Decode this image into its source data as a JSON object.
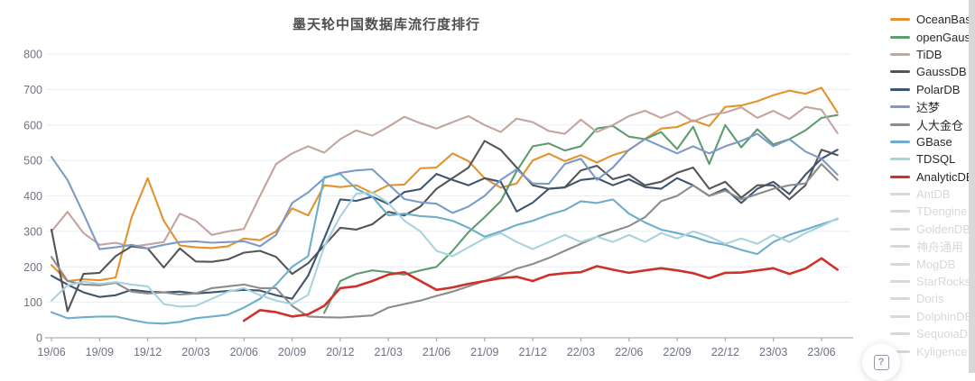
{
  "chart_data": {
    "type": "line",
    "title": "墨天轮中国数据库流行度排行",
    "grid": "horizontal",
    "legend_position": "right",
    "ylim": [
      0,
      800
    ],
    "y_ticks": [
      0,
      100,
      200,
      300,
      400,
      500,
      600,
      700,
      800
    ],
    "x_tick_labels": [
      "19/06",
      "19/09",
      "19/12",
      "20/03",
      "20/06",
      "20/09",
      "20/12",
      "21/03",
      "21/06",
      "21/09",
      "21/12",
      "22/03",
      "22/06",
      "22/09",
      "22/12",
      "23/03",
      "23/06"
    ],
    "x": [
      "19/06",
      "19/07",
      "19/08",
      "19/09",
      "19/10",
      "19/11",
      "19/12",
      "20/01",
      "20/02",
      "20/03",
      "20/04",
      "20/05",
      "20/06",
      "20/07",
      "20/08",
      "20/09",
      "20/10",
      "20/11",
      "20/12",
      "21/01",
      "21/02",
      "21/03",
      "21/04",
      "21/05",
      "21/06",
      "21/07",
      "21/08",
      "21/09",
      "21/10",
      "21/11",
      "21/12",
      "22/01",
      "22/02",
      "22/03",
      "22/04",
      "22/05",
      "22/06",
      "22/07",
      "22/08",
      "22/09",
      "22/10",
      "22/11",
      "22/12",
      "23/01",
      "23/02",
      "23/03",
      "23/04",
      "23/05",
      "23/06",
      "23/07"
    ],
    "series": [
      {
        "name": "OceanBase",
        "slug": "oceanbase",
        "color": "#E2932E",
        "values": [
          205,
          160,
          165,
          162,
          170,
          340,
          450,
          330,
          260,
          255,
          253,
          258,
          280,
          275,
          300,
          365,
          345,
          430,
          425,
          430,
          408,
          430,
          432,
          478,
          480,
          520,
          498,
          450,
          423,
          435,
          500,
          519,
          498,
          515,
          494,
          515,
          529,
          561,
          590,
          594,
          613,
          597,
          651,
          655,
          667,
          684,
          697,
          688,
          705,
          635
        ]
      },
      {
        "name": "openGauss",
        "slug": "opengauss",
        "color": "#5F9B71",
        "values": [
          null,
          null,
          null,
          null,
          null,
          null,
          null,
          null,
          null,
          null,
          null,
          null,
          null,
          null,
          null,
          null,
          null,
          70,
          160,
          180,
          190,
          185,
          178,
          190,
          200,
          245,
          298,
          340,
          385,
          470,
          540,
          548,
          528,
          540,
          590,
          597,
          567,
          560,
          580,
          532,
          595,
          490,
          600,
          537,
          588,
          545,
          560,
          585,
          620,
          628
        ]
      },
      {
        "name": "TiDB",
        "slug": "tidb",
        "color": "#C4A49D",
        "values": [
          300,
          355,
          295,
          262,
          268,
          257,
          263,
          270,
          350,
          330,
          290,
          300,
          307,
          400,
          490,
          520,
          540,
          522,
          560,
          585,
          570,
          595,
          623,
          605,
          590,
          608,
          625,
          600,
          580,
          618,
          608,
          583,
          575,
          615,
          580,
          600,
          625,
          640,
          620,
          638,
          610,
          628,
          635,
          650,
          620,
          640,
          617,
          651,
          643,
          577
        ]
      },
      {
        "name": "GaussDB",
        "slug": "gaussdb",
        "color": "#555555",
        "values": [
          305,
          75,
          180,
          183,
          230,
          258,
          252,
          198,
          252,
          215,
          214,
          221,
          240,
          245,
          228,
          180,
          210,
          260,
          310,
          305,
          320,
          355,
          345,
          370,
          420,
          450,
          480,
          555,
          530,
          480,
          430,
          420,
          424,
          472,
          485,
          447,
          460,
          430,
          440,
          465,
          480,
          420,
          440,
          395,
          430,
          430,
          390,
          430,
          530,
          515
        ]
      },
      {
        "name": "PolarDB",
        "slug": "polardb",
        "color": "#3D5570",
        "values": [
          175,
          150,
          128,
          115,
          120,
          135,
          130,
          128,
          130,
          125,
          128,
          132,
          135,
          133,
          120,
          110,
          175,
          280,
          390,
          386,
          398,
          377,
          411,
          419,
          462,
          445,
          430,
          450,
          440,
          356,
          381,
          420,
          424,
          445,
          450,
          430,
          447,
          425,
          420,
          450,
          430,
          400,
          420,
          380,
          420,
          440,
          405,
          460,
          505,
          530
        ]
      },
      {
        "name": "达梦",
        "slug": "dameng",
        "color": "#7B9AC7",
        "values": [
          510,
          445,
          350,
          250,
          255,
          262,
          252,
          262,
          270,
          272,
          268,
          270,
          272,
          258,
          290,
          380,
          410,
          450,
          465,
          472,
          475,
          433,
          391,
          382,
          378,
          352,
          370,
          400,
          445,
          475,
          435,
          434,
          490,
          505,
          445,
          480,
          530,
          560,
          540,
          520,
          540,
          520,
          540,
          555,
          575,
          540,
          560,
          525,
          505,
          460
        ]
      },
      {
        "name": "人大金仓",
        "slug": "kingbase",
        "color": "#8C8C8C",
        "values": [
          228,
          160,
          150,
          148,
          155,
          130,
          125,
          128,
          122,
          125,
          140,
          145,
          150,
          140,
          140,
          90,
          60,
          58,
          57,
          60,
          63,
          85,
          95,
          105,
          118,
          130,
          145,
          160,
          175,
          195,
          208,
          225,
          245,
          265,
          285,
          300,
          315,
          340,
          385,
          400,
          430,
          400,
          415,
          390,
          405,
          420,
          430,
          435,
          490,
          445
        ]
      },
      {
        "name": "GBase",
        "slug": "gbase",
        "color": "#6CAECB",
        "values": [
          72,
          55,
          58,
          60,
          60,
          50,
          42,
          40,
          45,
          55,
          60,
          65,
          85,
          110,
          150,
          200,
          230,
          453,
          462,
          420,
          398,
          345,
          350,
          343,
          340,
          330,
          310,
          285,
          300,
          318,
          330,
          347,
          360,
          385,
          380,
          390,
          350,
          325,
          305,
          295,
          285,
          270,
          262,
          248,
          236,
          270,
          290,
          305,
          320,
          335
        ]
      },
      {
        "name": "TDSQL",
        "slug": "tdsql",
        "color": "#A8D2DE",
        "values": [
          105,
          148,
          158,
          152,
          157,
          150,
          145,
          95,
          88,
          90,
          110,
          130,
          140,
          120,
          105,
          95,
          121,
          257,
          342,
          406,
          410,
          380,
          330,
          300,
          245,
          230,
          255,
          280,
          295,
          270,
          250,
          270,
          290,
          270,
          285,
          270,
          290,
          270,
          295,
          280,
          300,
          285,
          265,
          280,
          265,
          290,
          270,
          295,
          315,
          337
        ]
      },
      {
        "name": "AnalyticDB",
        "slug": "analyticdb",
        "color": "#D0302A",
        "values": [
          null,
          null,
          null,
          null,
          null,
          null,
          null,
          null,
          null,
          null,
          null,
          null,
          48,
          78,
          72,
          60,
          66,
          90,
          140,
          145,
          160,
          178,
          185,
          160,
          135,
          142,
          152,
          160,
          168,
          172,
          160,
          177,
          182,
          185,
          202,
          192,
          183,
          190,
          196,
          190,
          182,
          168,
          183,
          184,
          190,
          196,
          180,
          195,
          224,
          192
        ]
      }
    ],
    "disabled_series": [
      {
        "name": "AntDB",
        "slug": "antdb"
      },
      {
        "name": "TDengine",
        "slug": "tdengine"
      },
      {
        "name": "GoldenDB",
        "slug": "goldendb"
      },
      {
        "name": "神舟通用",
        "slug": "shentong"
      },
      {
        "name": "MogDB",
        "slug": "mogdb"
      },
      {
        "name": "StarRocks",
        "slug": "starrocks"
      },
      {
        "name": "Doris",
        "slug": "doris"
      },
      {
        "name": "DolphinDB",
        "slug": "dolphindb"
      },
      {
        "name": "SequoiaDB",
        "slug": "sequoiadb"
      },
      {
        "name": "Kyligence",
        "slug": "kyligence"
      }
    ],
    "colors": {
      "grid_line": "#E9EEF5",
      "axis_line": "#999CA3",
      "tick_label": "#6E7383",
      "disabled_legend": "#d8d8d8"
    }
  },
  "help_button": {
    "label": "?"
  }
}
